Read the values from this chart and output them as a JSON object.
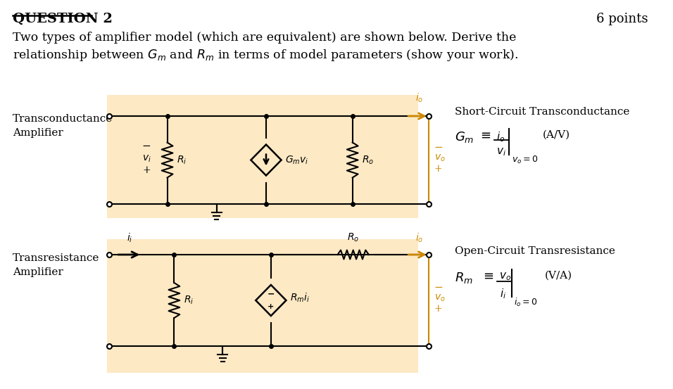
{
  "bg_color": "#ffffff",
  "highlight_color": "#fde9c4",
  "orange_color": "#cc8800",
  "black": "#000000",
  "title_text": "QUESTION 2",
  "points_text": "6 points",
  "desc_line1": "Two types of amplifier model (which are equivalent) are shown below. Derive the",
  "desc_line2": "relationship between $G_m$ and $R_m$ in terms of model parameters (show your work).",
  "sc_title": "Short-Circuit Transconductance",
  "oc_title": "Open-Circuit Transresistance"
}
